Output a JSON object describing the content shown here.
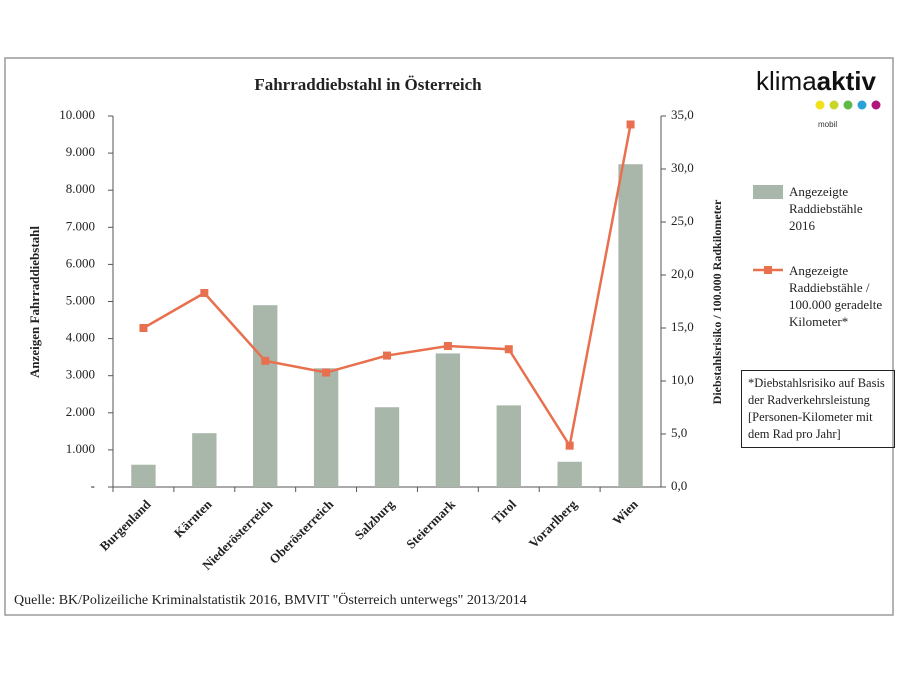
{
  "chart_data": {
    "type": "bar",
    "title": "Fahrraddiebstahl in Österreich",
    "y_label": "Anzeigen Fahrraddiebstahl",
    "y2_label": "Diebstahlsrisiko / 100.000 Radkilometer",
    "categories": [
      "Burgenland",
      "Kärnten",
      "Niederösterreich",
      "Oberösterreich",
      "Salzburg",
      "Steiermark",
      "Tirol",
      "Vorarlberg",
      "Wien"
    ],
    "series": [
      {
        "name": "Angezeigte Raddiebstähle 2016",
        "type": "bar",
        "color": "#a9b6aa",
        "values": [
          600,
          1450,
          4900,
          3200,
          2150,
          3600,
          2200,
          680,
          8700
        ]
      },
      {
        "name": "Angezeigte Raddiebstähle / 100.000 geradelte Kilometer*",
        "type": "line",
        "axis": "y2",
        "color": "#e8704f",
        "values": [
          15.0,
          18.3,
          11.9,
          10.8,
          12.4,
          13.3,
          13.0,
          3.9,
          34.2
        ]
      }
    ],
    "ylim": [
      0,
      10000
    ],
    "yticks": [
      {
        "value": 0,
        "label": "-"
      },
      {
        "value": 1000,
        "label": "1.000"
      },
      {
        "value": 2000,
        "label": "2.000"
      },
      {
        "value": 3000,
        "label": "3.000"
      },
      {
        "value": 4000,
        "label": "4.000"
      },
      {
        "value": 5000,
        "label": "5.000"
      },
      {
        "value": 6000,
        "label": "6.000"
      },
      {
        "value": 7000,
        "label": "7.000"
      },
      {
        "value": 8000,
        "label": "8.000"
      },
      {
        "value": 9000,
        "label": "9.000"
      },
      {
        "value": 10000,
        "label": "10.000"
      }
    ],
    "y2lim": [
      0,
      35
    ],
    "y2ticks": [
      {
        "value": 0,
        "label": "0,0"
      },
      {
        "value": 5,
        "label": "5,0"
      },
      {
        "value": 10,
        "label": "10,0"
      },
      {
        "value": 15,
        "label": "15,0"
      },
      {
        "value": 20,
        "label": "20,0"
      },
      {
        "value": 25,
        "label": "25,0"
      },
      {
        "value": 30,
        "label": "30,0"
      },
      {
        "value": 35,
        "label": "35,0"
      }
    ],
    "grid": false,
    "legend": "right",
    "note": "*Diebstahlsrisiko auf Basis der Radverkehrsleistung [Personen-Kilometer mit dem Rad pro Jahr]",
    "source": "Quelle:  BK/Polizeiliche Kriminalstatistik 2016, BMVIT \"Österreich unterwegs\" 2013/2014",
    "logo": {
      "part1": "klima",
      "part2": "aktiv",
      "sub": "mobil"
    }
  }
}
